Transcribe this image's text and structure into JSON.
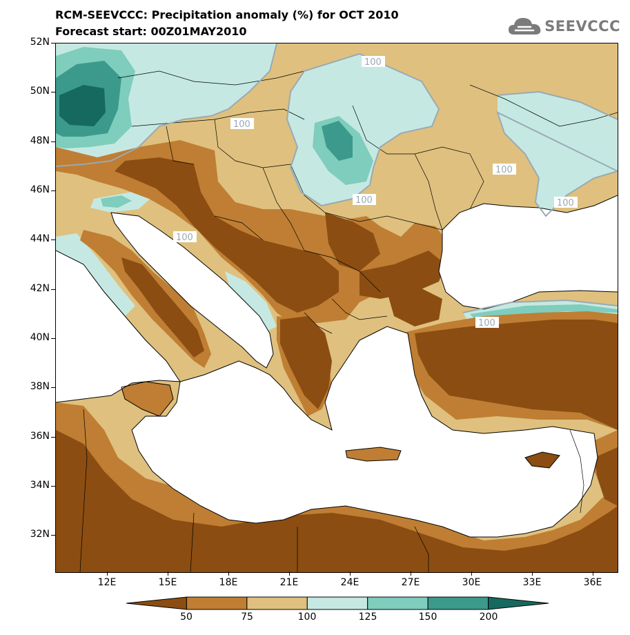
{
  "title": {
    "line1": "RCM-SEEVCCC: Precipitation anomaly (%) for OCT 2010",
    "line2": "Forecast start: 00Z01MAY2010"
  },
  "logo": {
    "text": "SEEVCCC",
    "icon": "cloud-icon"
  },
  "map": {
    "lat_labels": [
      "52N",
      "50N",
      "48N",
      "46N",
      "44N",
      "42N",
      "40N",
      "38N",
      "36N",
      "34N",
      "32N"
    ],
    "lon_labels": [
      "12E",
      "15E",
      "18E",
      "21E",
      "24E",
      "27E",
      "30E",
      "33E",
      "36E"
    ],
    "contour_label": "100",
    "colors": {
      "lt50": "#8b4d11",
      "50_75": "#bf7e33",
      "75_100": "#dfc07e",
      "100_125": "#c5e9e2",
      "125_150": "#7fcdbc",
      "150_200": "#3b9a8c",
      "gt200": "#16695f",
      "sea": "#ffffff",
      "coast": "#000000",
      "contour": "#9aa9b4"
    }
  },
  "colorbar": {
    "labels": [
      "50",
      "75",
      "100",
      "125",
      "150",
      "200"
    ],
    "colors": [
      "#8b4d11",
      "#bf7e33",
      "#dfc07e",
      "#c5e9e2",
      "#7fcdbc",
      "#3b9a8c",
      "#16695f"
    ]
  }
}
